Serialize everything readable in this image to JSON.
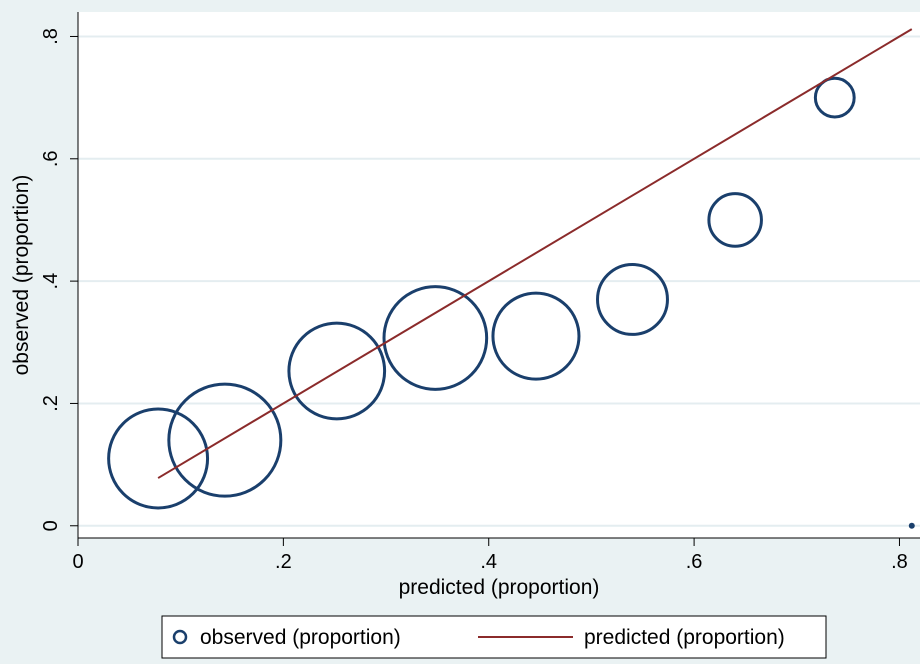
{
  "chart_data": {
    "type": "scatter",
    "xlabel": "predicted (proportion)",
    "ylabel": "observed (proportion)",
    "xlim": [
      0,
      0.82
    ],
    "ylim": [
      -0.02,
      0.84
    ],
    "x_ticks": [
      0,
      0.2,
      0.4,
      0.6,
      0.8
    ],
    "x_tick_labels": [
      "0",
      ".2",
      ".4",
      ".6",
      ".8"
    ],
    "y_ticks": [
      0,
      0.2,
      0.4,
      0.6,
      0.8
    ],
    "y_tick_labels": [
      "0",
      ".2",
      ".4",
      ".6",
      ".8"
    ],
    "grid": true,
    "legend_position": "bottom",
    "series": [
      {
        "name": "observed (proportion)",
        "kind": "scatter",
        "color": "#1a3f6c",
        "marker": "hollow-circle-sized-by-weight",
        "points": [
          {
            "x": 0.078,
            "y": 0.11,
            "weight": 0.78
          },
          {
            "x": 0.143,
            "y": 0.14,
            "weight": 1.0
          },
          {
            "x": 0.252,
            "y": 0.253,
            "weight": 0.73
          },
          {
            "x": 0.348,
            "y": 0.307,
            "weight": 0.84
          },
          {
            "x": 0.446,
            "y": 0.31,
            "weight": 0.59
          },
          {
            "x": 0.54,
            "y": 0.37,
            "weight": 0.39
          },
          {
            "x": 0.64,
            "y": 0.5,
            "weight": 0.22
          },
          {
            "x": 0.737,
            "y": 0.7,
            "weight": 0.12
          },
          {
            "x": 0.812,
            "y": 0.0,
            "weight": 0.0
          }
        ]
      },
      {
        "name": "predicted (proportion)",
        "kind": "line",
        "color": "#8b2b2b",
        "x": [
          0.078,
          0.812
        ],
        "y": [
          0.078,
          0.812
        ]
      }
    ]
  }
}
